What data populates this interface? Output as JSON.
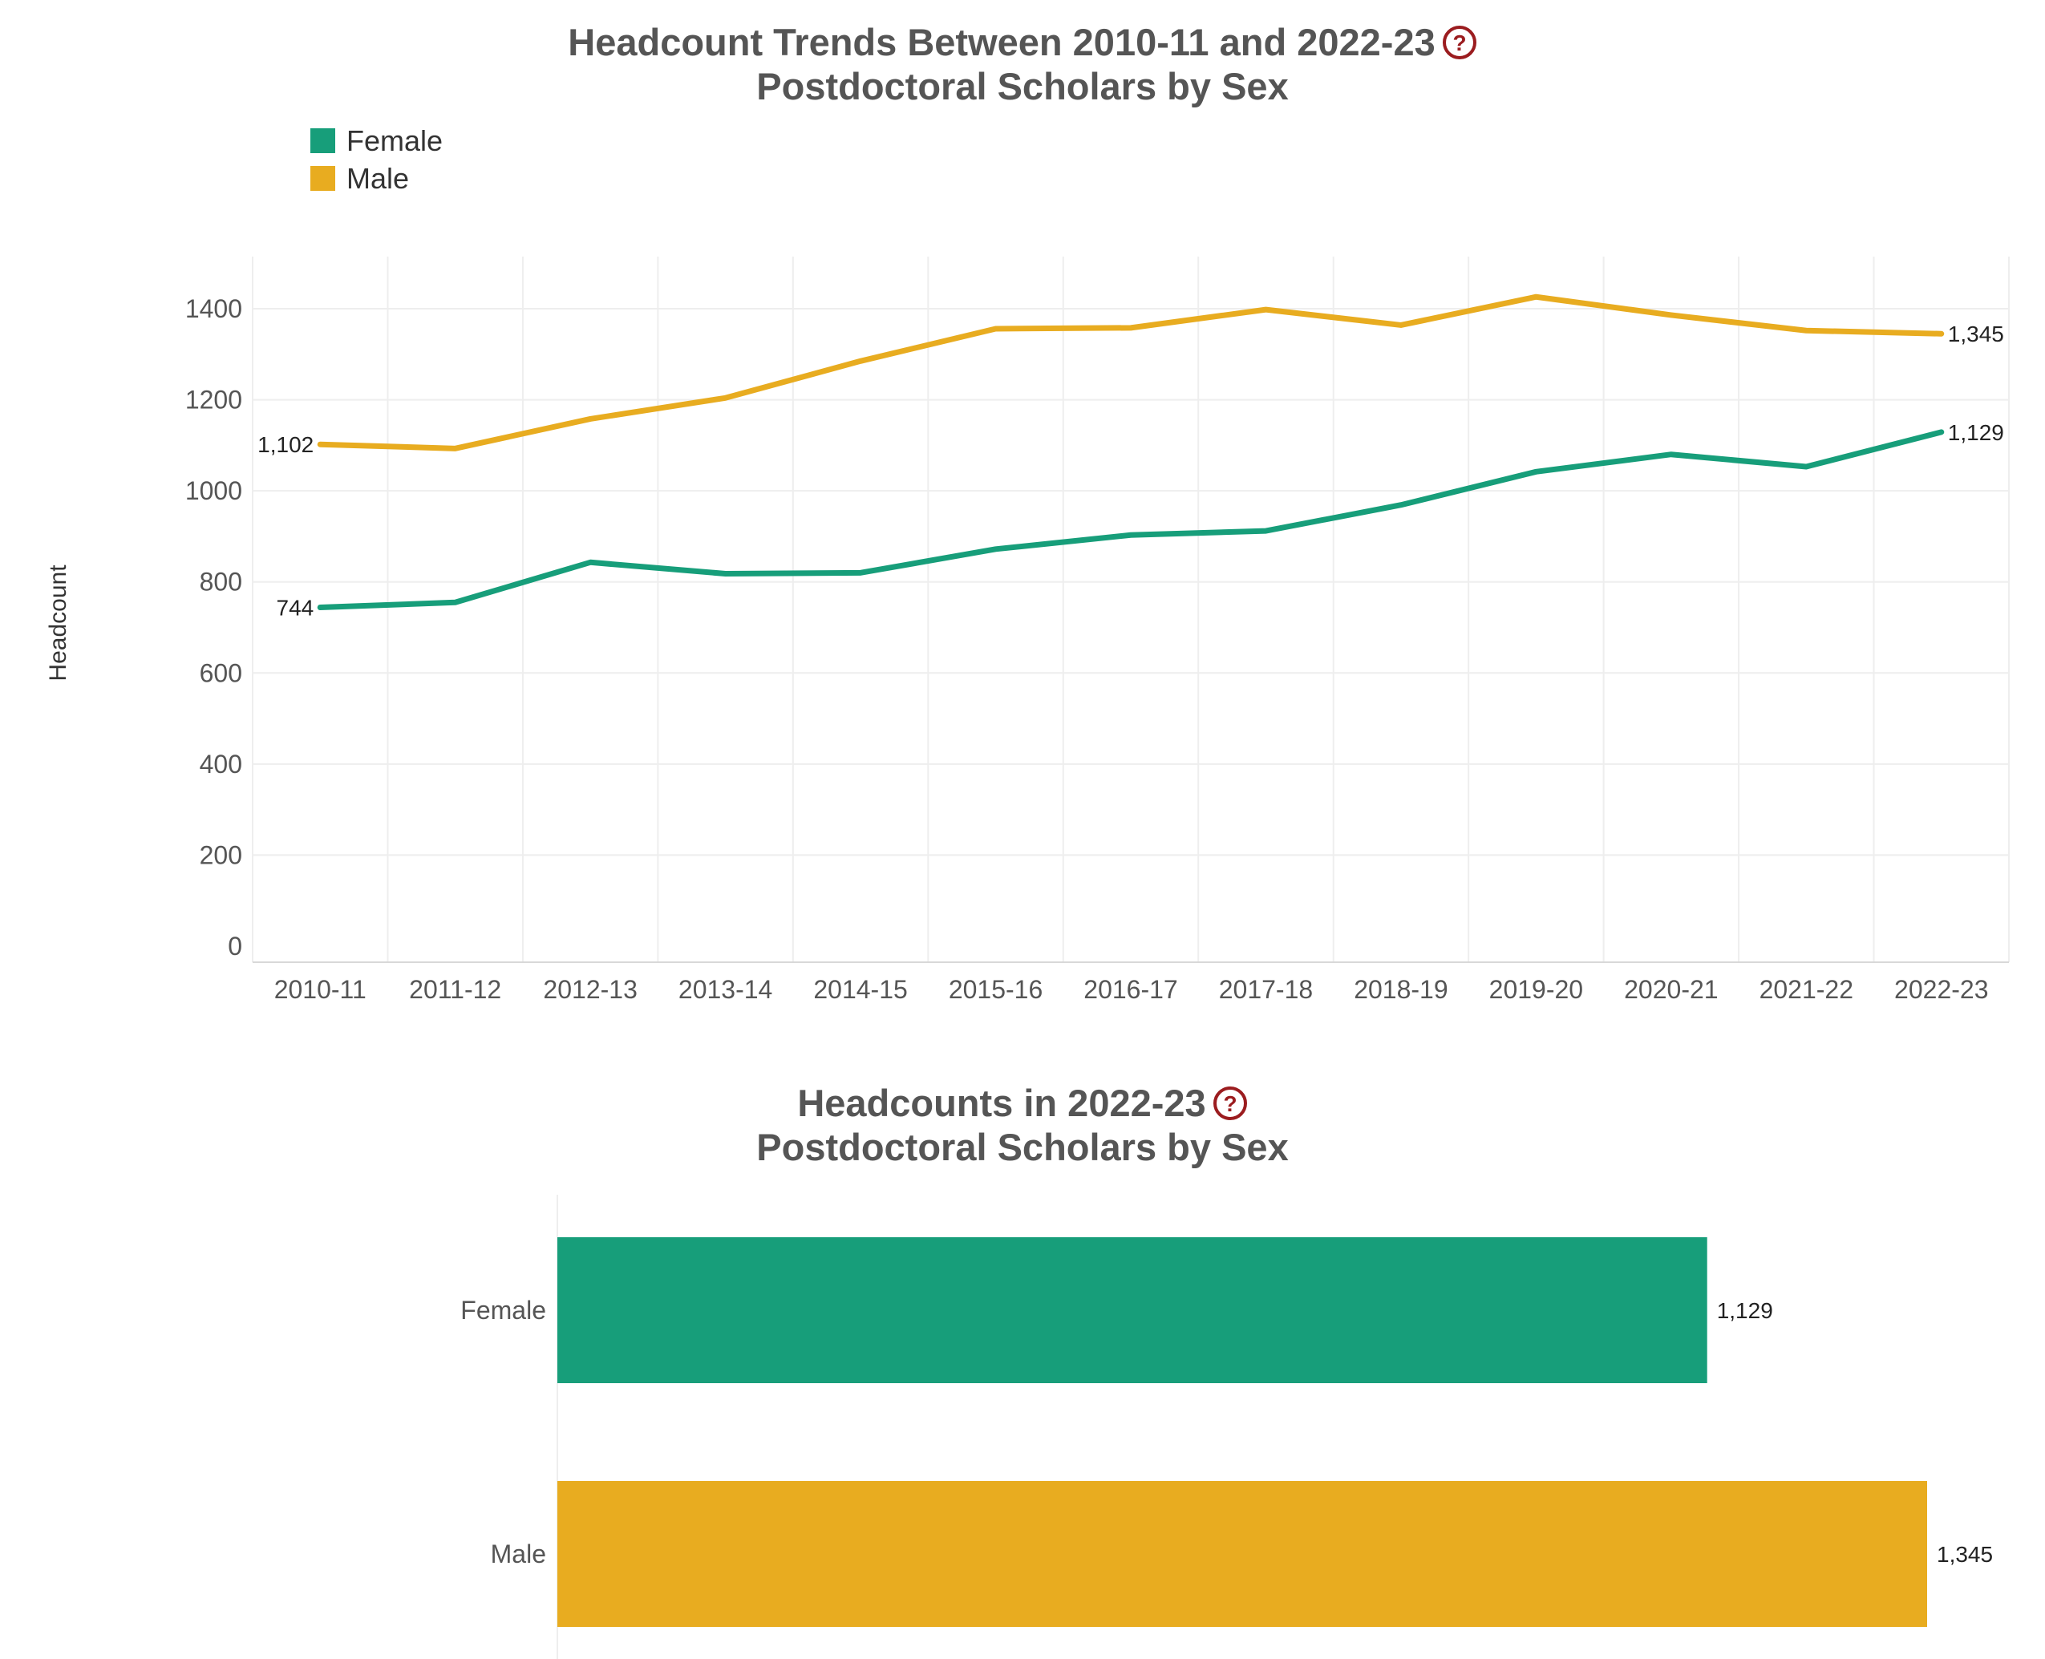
{
  "chart_data": [
    {
      "type": "line",
      "title_line1": "Headcount Trends Between 2010-11 and 2022-23",
      "title_line2": "Postdoctoral Scholars by Sex",
      "xlabel": "",
      "ylabel": "Headcount",
      "ylim": [
        0,
        1500
      ],
      "yticks": [
        0,
        200,
        400,
        600,
        800,
        1000,
        1200,
        1400
      ],
      "categories": [
        "2010-11",
        "2011-12",
        "2012-13",
        "2013-14",
        "2014-15",
        "2015-16",
        "2016-17",
        "2017-18",
        "2018-19",
        "2019-20",
        "2020-21",
        "2021-22",
        "2022-23"
      ],
      "legend_position": "top-left",
      "series": [
        {
          "name": "Female",
          "color": "#179e7a",
          "values": [
            744,
            755,
            843,
            818,
            820,
            872,
            903,
            912,
            969,
            1042,
            1080,
            1053,
            1129
          ],
          "start_label": "744",
          "end_label": "1,129"
        },
        {
          "name": "Male",
          "color": "#e8ac20",
          "values": [
            1102,
            1093,
            1158,
            1204,
            1285,
            1356,
            1358,
            1398,
            1364,
            1426,
            1386,
            1352,
            1345
          ],
          "start_label": "1,102",
          "end_label": "1,345"
        }
      ]
    },
    {
      "type": "bar",
      "orientation": "horizontal",
      "title_line1": "Headcounts in 2022-23",
      "title_line2": "Postdoctoral Scholars by Sex",
      "categories": [
        "Female",
        "Male"
      ],
      "values": [
        1129,
        1345
      ],
      "value_labels": [
        "1,129",
        "1,345"
      ],
      "colors": [
        "#179e7a",
        "#e8ac20"
      ],
      "xlim": [
        0,
        1345
      ]
    }
  ],
  "help_icon": "question-circle-icon",
  "help_color": "#9b1c1f"
}
